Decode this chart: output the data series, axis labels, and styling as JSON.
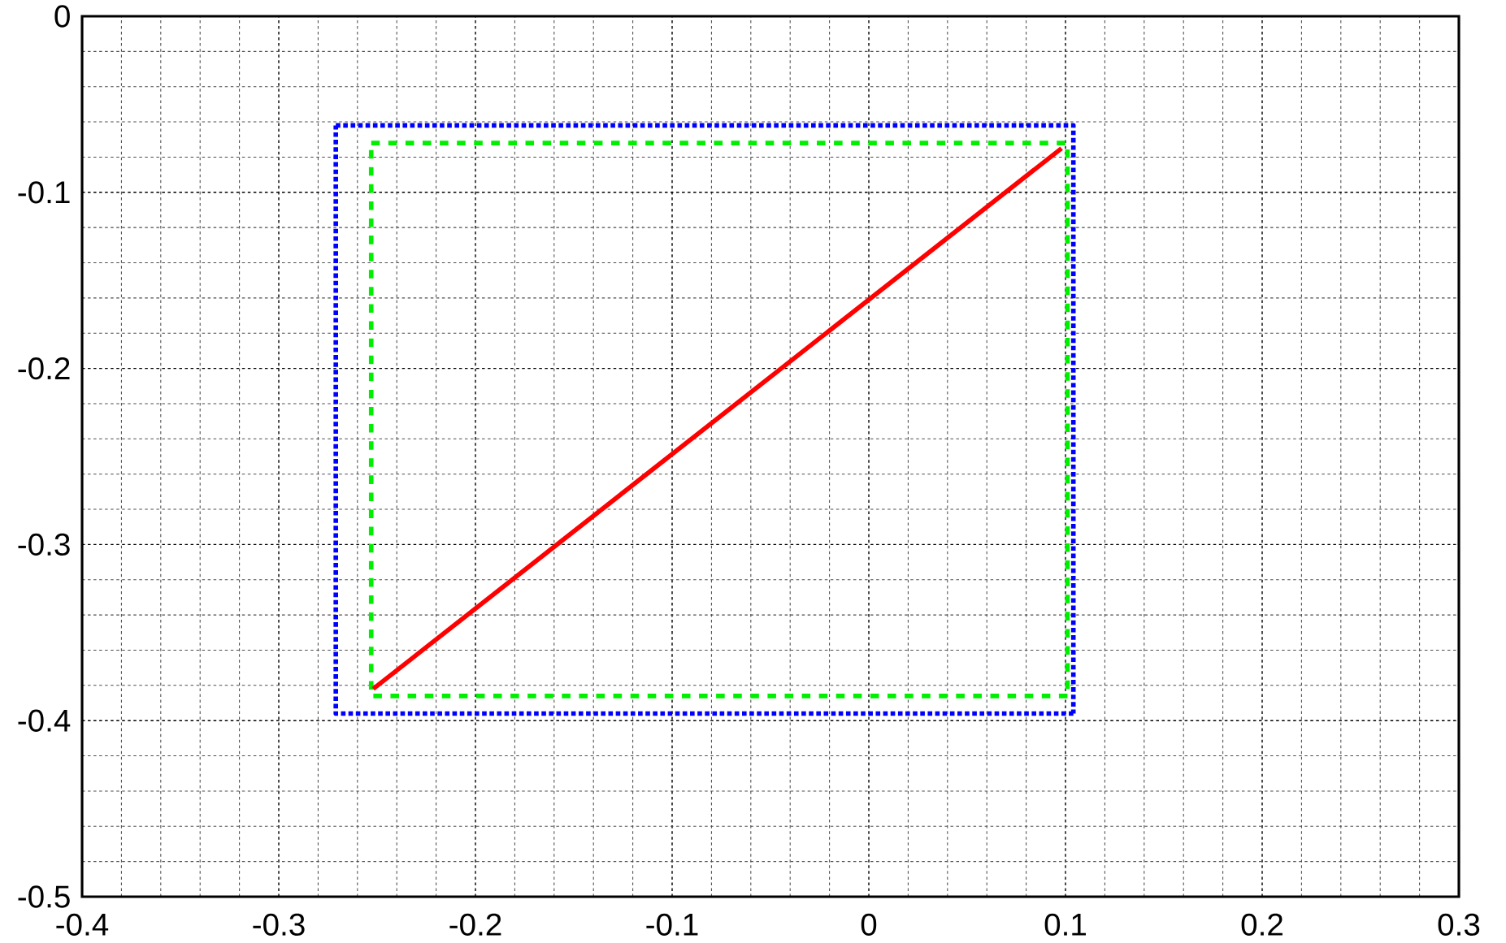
{
  "chart_data": {
    "type": "line",
    "xlim": [
      -0.4,
      0.3
    ],
    "ylim": [
      -0.5,
      0
    ],
    "xticks": [
      -0.4,
      -0.3,
      -0.2,
      -0.1,
      0,
      0.1,
      0.2,
      0.3
    ],
    "yticks": [
      -0.5,
      -0.4,
      -0.3,
      -0.2,
      -0.1,
      0
    ],
    "grid": true,
    "series": [
      {
        "color": "#0000ff",
        "line_style": "dotted",
        "x": [
          -0.271,
          0.104,
          0.104
        ],
        "values": [
          -0.062,
          -0.062,
          -0.396
        ]
      },
      {
        "color": "#0000ff",
        "line_style": "dotted",
        "x": [
          0.104,
          -0.271,
          -0.271
        ],
        "values": [
          -0.396,
          -0.396,
          -0.062
        ]
      },
      {
        "color": "#00ee00",
        "line_style": "dashed",
        "x": [
          -0.253,
          0.101,
          0.101
        ],
        "values": [
          -0.072,
          -0.072,
          -0.386
        ]
      },
      {
        "color": "#00ee00",
        "line_style": "dashed",
        "x": [
          0.101,
          -0.253,
          -0.253
        ],
        "values": [
          -0.386,
          -0.386,
          -0.072
        ]
      },
      {
        "color": "#ff0000",
        "line_style": "solid",
        "x": [
          -0.252,
          0.098
        ],
        "values": [
          -0.382,
          -0.075
        ]
      }
    ]
  }
}
